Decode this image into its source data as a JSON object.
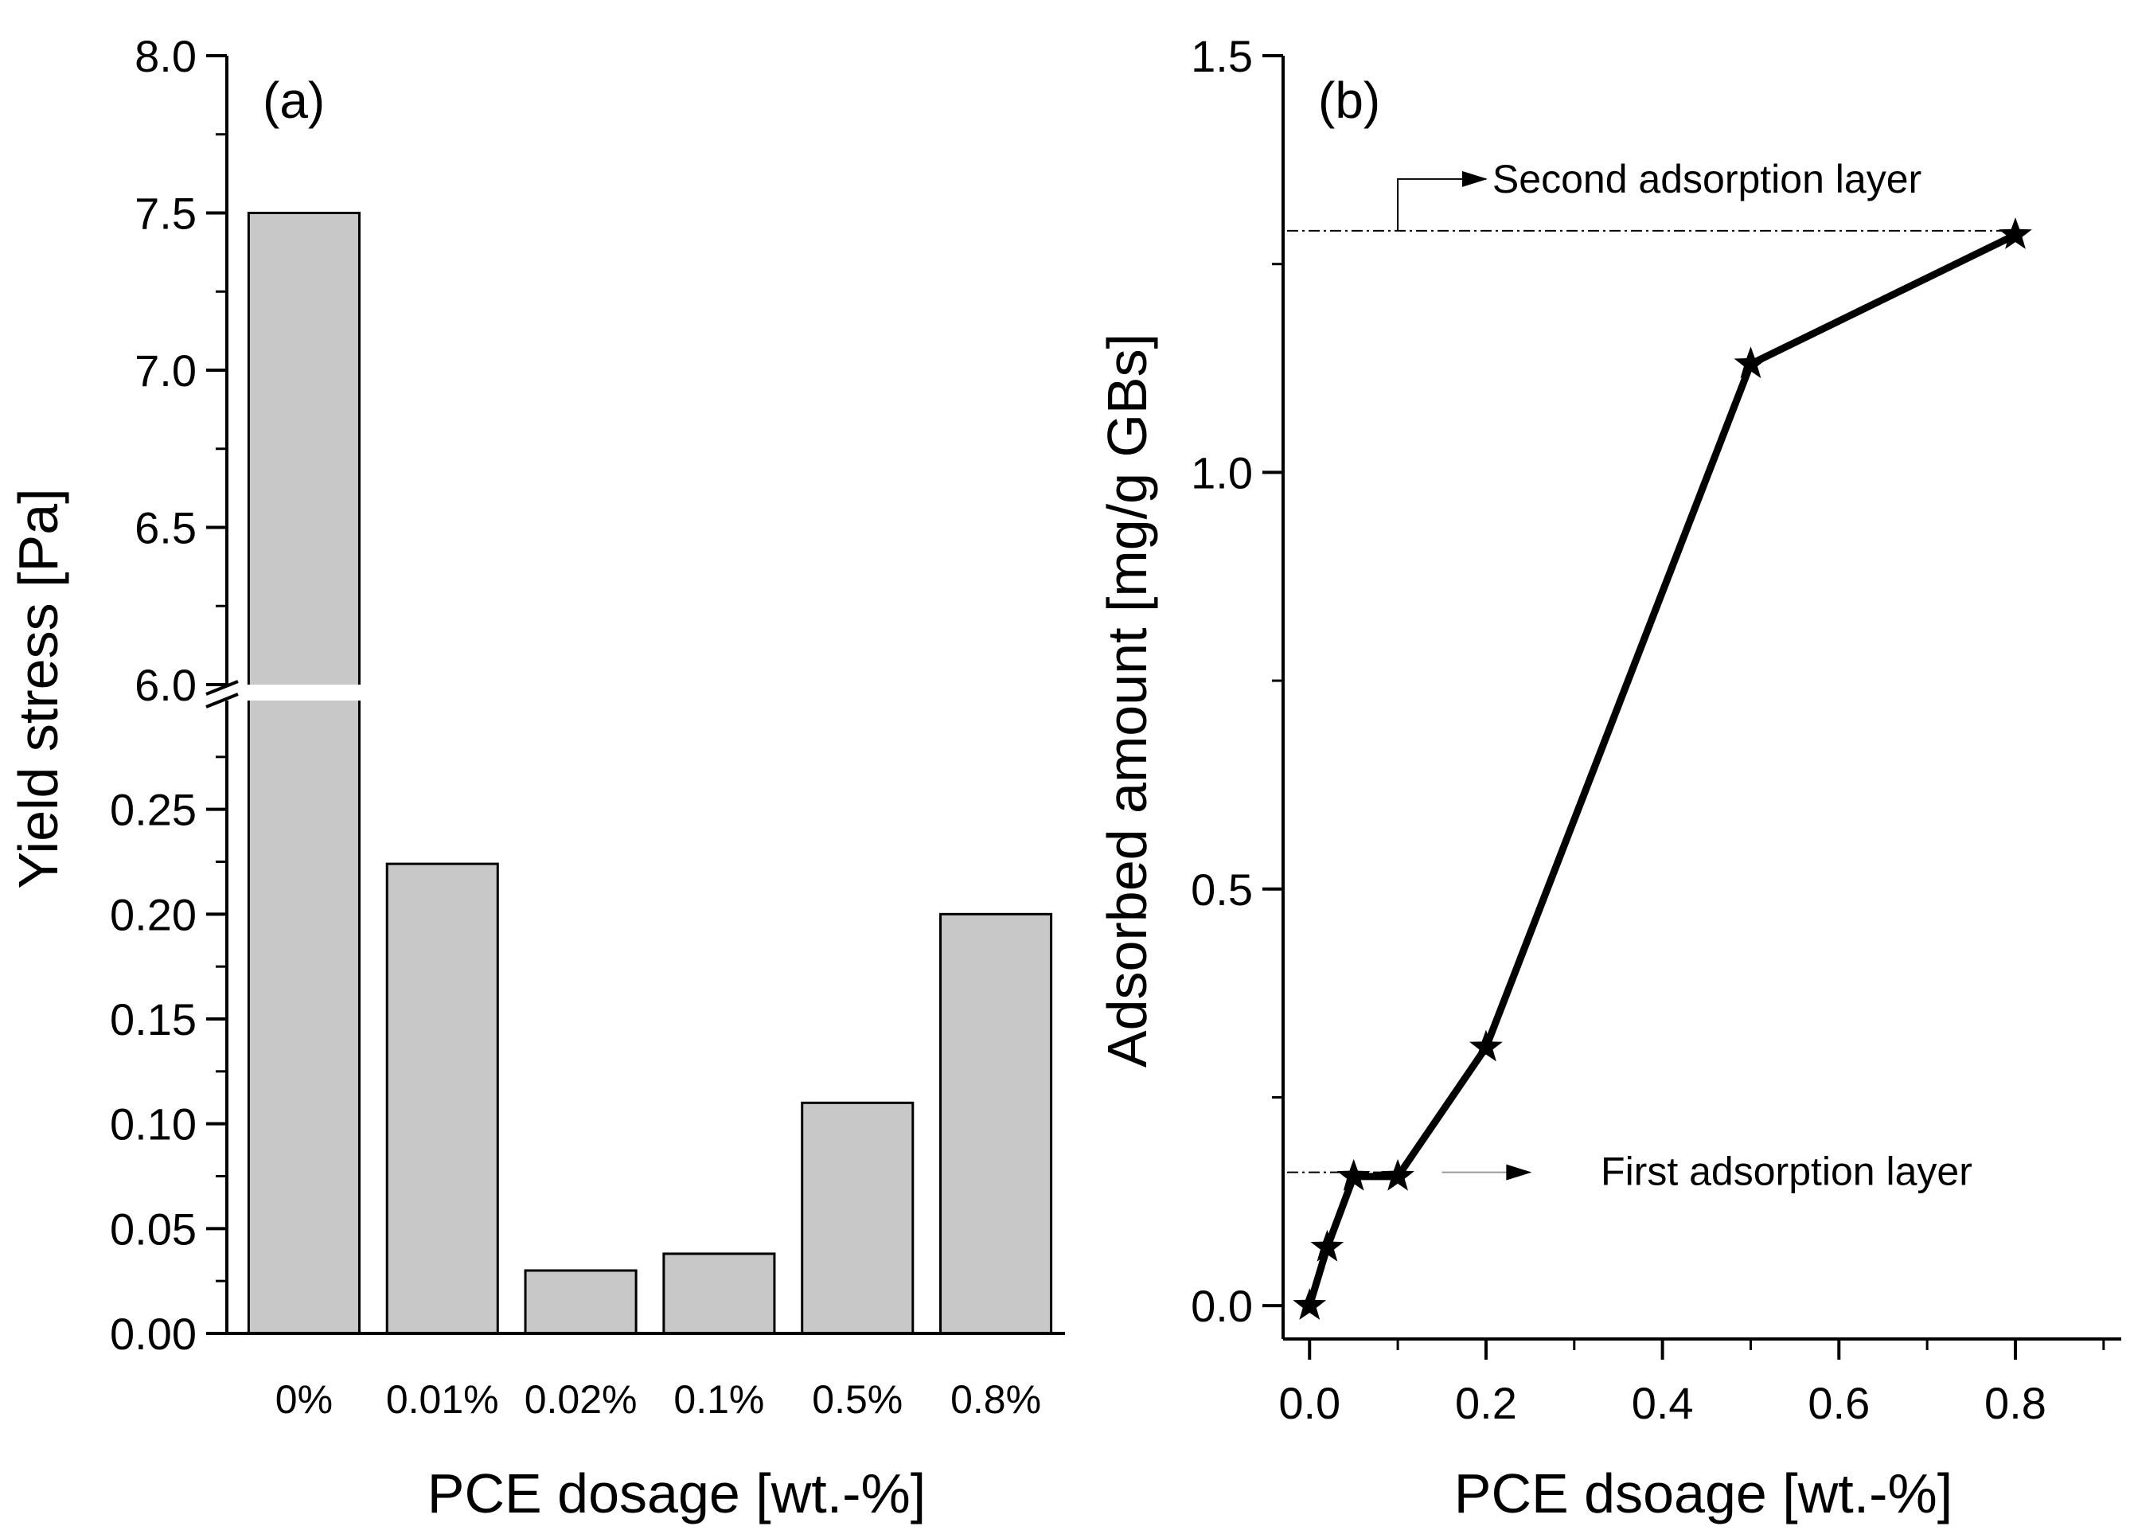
{
  "chart_data": [
    {
      "type": "bar",
      "panel_label": "(a)",
      "xlabel": "PCE dosage [wt.-%]",
      "ylabel": "Yield stress [Pa]",
      "categories": [
        "0%",
        "0.01%",
        "0.02%",
        "0.1%",
        "0.5%",
        "0.8%"
      ],
      "values": [
        7.5,
        0.224,
        0.03,
        0.038,
        0.11,
        0.2
      ],
      "y_axis_break": {
        "lower_range": [
          0,
          0.3
        ],
        "upper_range": [
          6.0,
          8.0
        ]
      },
      "lower_ticks": [
        "0.00",
        "0.05",
        "0.10",
        "0.15",
        "0.20",
        "0.25"
      ],
      "upper_ticks": [
        "6.0",
        "6.5",
        "7.0",
        "7.5",
        "8.0"
      ],
      "colors": {
        "bar_fill": "#c8c8c8",
        "bar_edge": "#000000"
      }
    },
    {
      "type": "line",
      "panel_label": "(b)",
      "xlabel": "PCE dsoage [wt.-%]",
      "ylabel": "Adsorbed amount [mg/g GBs]",
      "x": [
        0.0,
        0.02,
        0.05,
        0.1,
        0.2,
        0.5,
        0.8
      ],
      "y": [
        0.0,
        0.07,
        0.155,
        0.155,
        0.31,
        1.13,
        1.285
      ],
      "xlim": [
        -0.03,
        0.92
      ],
      "ylim": [
        -0.04,
        1.5
      ],
      "x_ticks": [
        "0.0",
        "0.2",
        "0.4",
        "0.6",
        "0.8"
      ],
      "y_ticks": [
        "0.0",
        "0.5",
        "1.0",
        "1.5"
      ],
      "marker": "star",
      "annotations": [
        {
          "text": "Second adsorption layer",
          "level": 1.29
        },
        {
          "text": "First adsorption layer",
          "level": 0.16
        }
      ],
      "colors": {
        "line": "#000000"
      }
    }
  ]
}
